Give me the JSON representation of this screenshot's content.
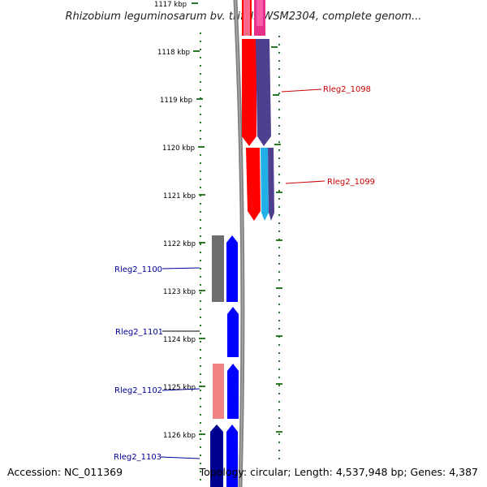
{
  "title": "Rhizobium leguminosarum bv. trifolii WSM2304, complete genom...",
  "accession": "Accession: NC_011369",
  "summary": "Topology: circular; Length: 4,537,948 bp; Genes: 4,387",
  "kbp_ticks": [
    "1117 kbp",
    "1118 kbp",
    "1119 kbp",
    "1120 kbp",
    "1121 kbp",
    "1122 kbp",
    "1123 kbp",
    "1124 kbp",
    "1125 kbp",
    "1126 kbp"
  ],
  "genes": [
    {
      "label": "Rleg2_1098",
      "color": "#cc0000",
      "strand": "reverse"
    },
    {
      "label": "Rleg2_1099",
      "color": "#cc0000",
      "strand": "reverse"
    },
    {
      "label": "Rleg2_1100",
      "color": "#000099",
      "strand": "forward"
    },
    {
      "label": "Rleg2_1101",
      "color": "#000099",
      "strand": "forward"
    },
    {
      "label": "Rleg2_1102",
      "color": "#000099",
      "strand": "forward"
    },
    {
      "label": "Rleg2_1103",
      "color": "#000099",
      "strand": "forward"
    }
  ],
  "colors": {
    "backbone": "#808080",
    "tick_green": "#2a7a2a",
    "red": "#ff0000",
    "purple": "#4f3f8f",
    "magenta": "#e8308a",
    "cyan": "#22b0e8",
    "blue": "#0000ff",
    "gray": "#6e6e6e",
    "pink": "#f08484",
    "navy": "#000090"
  }
}
